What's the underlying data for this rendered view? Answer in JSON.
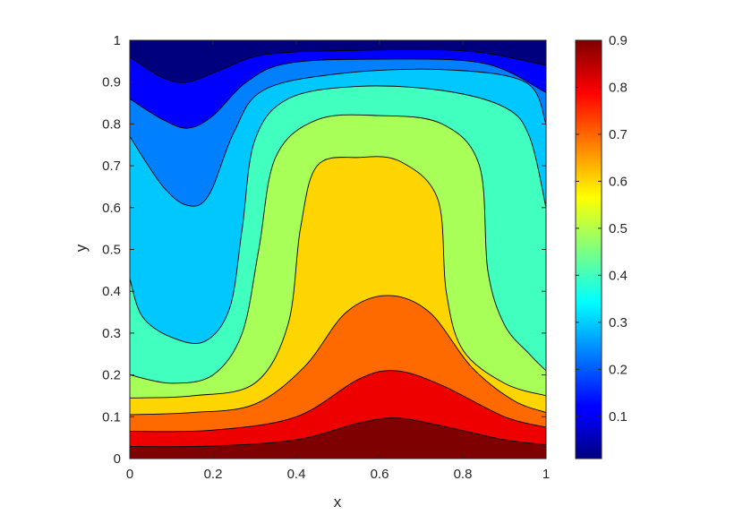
{
  "chart_data": {
    "type": "contour",
    "title": "",
    "xlabel": "x",
    "ylabel": "y",
    "xlim": [
      0,
      1
    ],
    "ylim": [
      0,
      1
    ],
    "xticks": [
      "0",
      "0.2",
      "0.4",
      "0.6",
      "0.8",
      "1"
    ],
    "yticks": [
      "0",
      "0.1",
      "0.2",
      "0.3",
      "0.4",
      "0.5",
      "0.6",
      "0.7",
      "0.8",
      "0.9",
      "1"
    ],
    "colorbar": {
      "range": [
        0.01,
        0.9
      ],
      "ticks": [
        "0.1",
        "0.2",
        "0.3",
        "0.4",
        "0.5",
        "0.6",
        "0.7",
        "0.8",
        "0.9"
      ],
      "colormap": "jet"
    },
    "contour_levels": [
      0.1,
      0.2,
      0.3,
      0.4,
      0.5,
      0.6,
      0.7,
      0.8
    ],
    "grid": false,
    "fill_colors": [
      "#00007f",
      "#0000ff",
      "#0080ff",
      "#00c8ff",
      "#40ffbf",
      "#a8ff57",
      "#ffd500",
      "#ff6a00",
      "#ee0000",
      "#7f0000"
    ],
    "contour_curves": [
      {
        "level": 0.8,
        "points": [
          [
            0,
            0.029
          ],
          [
            0.2,
            0.03
          ],
          [
            0.4,
            0.045
          ],
          [
            0.55,
            0.085
          ],
          [
            0.64,
            0.097
          ],
          [
            0.75,
            0.078
          ],
          [
            0.9,
            0.045
          ],
          [
            1,
            0.033
          ]
        ]
      },
      {
        "level": 0.7,
        "points": [
          [
            0,
            0.065
          ],
          [
            0.2,
            0.068
          ],
          [
            0.4,
            0.1
          ],
          [
            0.55,
            0.19
          ],
          [
            0.64,
            0.21
          ],
          [
            0.75,
            0.175
          ],
          [
            0.9,
            0.1
          ],
          [
            1,
            0.075
          ]
        ]
      },
      {
        "level": 0.6,
        "points": [
          [
            0,
            0.105
          ],
          [
            0.15,
            0.11
          ],
          [
            0.3,
            0.13
          ],
          [
            0.42,
            0.22
          ],
          [
            0.52,
            0.35
          ],
          [
            0.62,
            0.39
          ],
          [
            0.72,
            0.35
          ],
          [
            0.82,
            0.22
          ],
          [
            0.92,
            0.14
          ],
          [
            1,
            0.11
          ]
        ]
      },
      {
        "level": 0.5,
        "points": [
          [
            0,
            0.145
          ],
          [
            0.15,
            0.15
          ],
          [
            0.3,
            0.18
          ],
          [
            0.38,
            0.32
          ],
          [
            0.41,
            0.55
          ],
          [
            0.45,
            0.7
          ],
          [
            0.55,
            0.72
          ],
          [
            0.65,
            0.71
          ],
          [
            0.74,
            0.62
          ],
          [
            0.76,
            0.4
          ],
          [
            0.8,
            0.26
          ],
          [
            0.9,
            0.18
          ],
          [
            1,
            0.15
          ]
        ]
      },
      {
        "level": 0.4,
        "points": [
          [
            0,
            0.2
          ],
          [
            0.1,
            0.18
          ],
          [
            0.2,
            0.2
          ],
          [
            0.27,
            0.3
          ],
          [
            0.31,
            0.5
          ],
          [
            0.35,
            0.72
          ],
          [
            0.45,
            0.81
          ],
          [
            0.6,
            0.82
          ],
          [
            0.75,
            0.8
          ],
          [
            0.84,
            0.7
          ],
          [
            0.86,
            0.45
          ],
          [
            0.9,
            0.32
          ],
          [
            0.96,
            0.25
          ],
          [
            1,
            0.21
          ]
        ]
      },
      {
        "level": 0.3,
        "points": [
          [
            0,
            0.43
          ],
          [
            0.03,
            0.34
          ],
          [
            0.1,
            0.29
          ],
          [
            0.18,
            0.28
          ],
          [
            0.24,
            0.36
          ],
          [
            0.27,
            0.55
          ],
          [
            0.3,
            0.76
          ],
          [
            0.38,
            0.86
          ],
          [
            0.55,
            0.89
          ],
          [
            0.75,
            0.88
          ],
          [
            0.9,
            0.84
          ],
          [
            0.96,
            0.77
          ],
          [
            1,
            0.6
          ]
        ]
      },
      {
        "level": 0.2,
        "points": [
          [
            0,
            0.77
          ],
          [
            0.08,
            0.65
          ],
          [
            0.14,
            0.605
          ],
          [
            0.19,
            0.63
          ],
          [
            0.25,
            0.78
          ],
          [
            0.32,
            0.88
          ],
          [
            0.5,
            0.92
          ],
          [
            0.75,
            0.93
          ],
          [
            0.95,
            0.9
          ],
          [
            1,
            0.8
          ]
        ]
      },
      {
        "level": 0.1,
        "points": [
          [
            0,
            0.86
          ],
          [
            0.08,
            0.81
          ],
          [
            0.14,
            0.79
          ],
          [
            0.2,
            0.82
          ],
          [
            0.28,
            0.9
          ],
          [
            0.38,
            0.945
          ],
          [
            0.6,
            0.955
          ],
          [
            0.85,
            0.945
          ],
          [
            1,
            0.875
          ]
        ]
      },
      {
        "level": 0.01,
        "points": [
          [
            0,
            0.96
          ],
          [
            0.08,
            0.91
          ],
          [
            0.14,
            0.9
          ],
          [
            0.22,
            0.93
          ],
          [
            0.32,
            0.965
          ],
          [
            0.5,
            0.975
          ],
          [
            0.8,
            0.975
          ],
          [
            1,
            0.94
          ]
        ]
      }
    ]
  }
}
